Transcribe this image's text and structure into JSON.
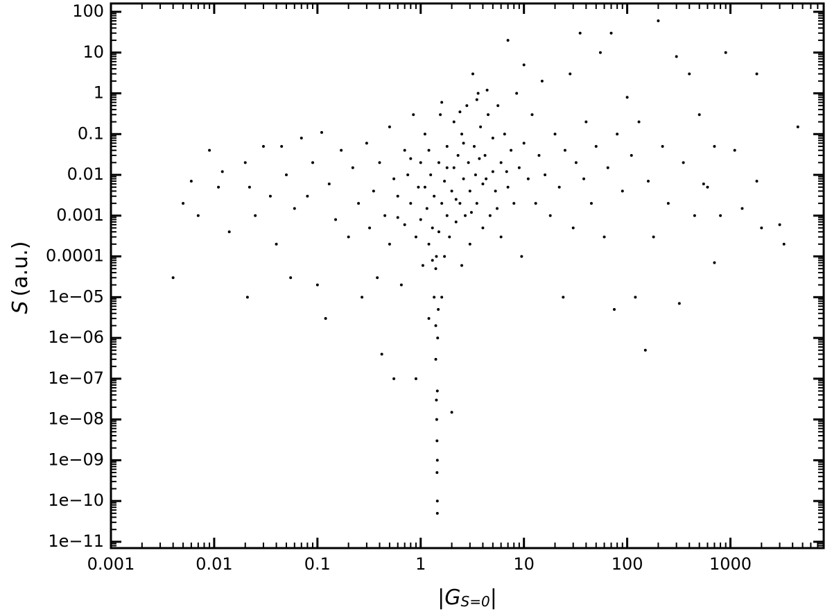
{
  "chart_data": {
    "type": "scatter",
    "xlabel_parts": [
      "|",
      "G",
      "S=0",
      "|"
    ],
    "ylabel_parts": [
      "S",
      "(a.u.)"
    ],
    "xscale": "log",
    "yscale": "log",
    "minor_ticks": true,
    "grid": false,
    "xlim": [
      0.001,
      8000
    ],
    "ylim": [
      7e-12,
      160
    ],
    "xticks": [
      0.001,
      0.01,
      0.1,
      1,
      10,
      100,
      1000
    ],
    "yticks": [
      100,
      10,
      1,
      0.1,
      0.01,
      0.001,
      0.0001,
      {
        "value": 1e-05,
        "label": "1e−05"
      },
      {
        "value": 1e-06,
        "label": "1e−06"
      },
      {
        "value": 1e-07,
        "label": "1e−07"
      },
      {
        "value": 1e-08,
        "label": "1e−08"
      },
      {
        "value": 1e-09,
        "label": "1e−09"
      },
      {
        "value": 1e-10,
        "label": "1e−10"
      },
      {
        "value": 1e-11,
        "label": "1e−11"
      }
    ],
    "series": [
      {
        "color": "#000000",
        "x": [
          0.004,
          0.005,
          0.006,
          0.007,
          0.009,
          0.011,
          0.012,
          0.014,
          0.02,
          0.021,
          0.022,
          0.025,
          0.03,
          0.035,
          0.04,
          0.045,
          0.05,
          0.055,
          0.06,
          0.07,
          0.08,
          0.09,
          0.1,
          0.11,
          0.12,
          0.13,
          0.15,
          0.17,
          0.2,
          0.22,
          0.25,
          0.27,
          0.3,
          0.32,
          0.35,
          0.38,
          0.4,
          0.42,
          0.45,
          0.5,
          0.5,
          0.55,
          0.55,
          0.6,
          0.65,
          0.7,
          0.7,
          0.75,
          0.8,
          0.85,
          0.9,
          0.9,
          0.95,
          1.0,
          1.0,
          1.05,
          1.1,
          1.1,
          1.15,
          1.2,
          1.2,
          1.25,
          1.3,
          1.3,
          1.35,
          1.35,
          1.4,
          1.4,
          1.4,
          1.42,
          1.42,
          1.43,
          1.44,
          1.44,
          1.45,
          1.45,
          1.45,
          1.45,
          1.46,
          1.48,
          1.5,
          1.5,
          1.55,
          1.6,
          1.6,
          1.7,
          1.7,
          1.8,
          1.8,
          1.9,
          2.0,
          2.0,
          2.1,
          2.1,
          2.2,
          2.3,
          2.4,
          2.5,
          2.5,
          2.6,
          2.7,
          2.8,
          2.9,
          3.0,
          3.0,
          3.2,
          3.3,
          3.4,
          3.5,
          3.6,
          3.8,
          4.0,
          4.0,
          4.2,
          4.4,
          4.5,
          4.7,
          5.0,
          5.0,
          5.3,
          5.6,
          6.0,
          6.0,
          6.5,
          7,
          7,
          7.5,
          8,
          8.5,
          9,
          9.5,
          10,
          10,
          11,
          12,
          13,
          14,
          15,
          16,
          18,
          20,
          22,
          24,
          25,
          28,
          30,
          32,
          35,
          38,
          40,
          45,
          50,
          55,
          60,
          65,
          70,
          75,
          80,
          90,
          100,
          110,
          120,
          130,
          150,
          160,
          180,
          200,
          220,
          250,
          300,
          320,
          350,
          400,
          450,
          500,
          550,
          600,
          700,
          800,
          900,
          1100,
          1300,
          1800,
          1800,
          3000,
          3300,
          4500,
          700,
          2000,
          1.2,
          1.8,
          2.2,
          2.6,
          3.1,
          3.7,
          4.3,
          5.5,
          6.8,
          0.8,
          0.6,
          1.6,
          2.4,
          3.5
        ],
        "values": [
          3e-05,
          0.002,
          0.007,
          0.001,
          0.04,
          0.005,
          0.012,
          0.0004,
          0.02,
          1e-05,
          0.005,
          0.001,
          0.05,
          0.003,
          0.0002,
          0.05,
          0.01,
          3e-05,
          0.0015,
          0.08,
          0.003,
          0.02,
          2e-05,
          0.11,
          3e-06,
          0.006,
          0.0008,
          0.04,
          0.0003,
          0.015,
          0.002,
          1e-05,
          0.06,
          0.0005,
          0.004,
          3e-05,
          0.02,
          4e-07,
          0.001,
          0.15,
          0.0002,
          1e-07,
          0.008,
          0.003,
          2e-05,
          0.04,
          0.0006,
          0.01,
          0.002,
          0.3,
          1e-07,
          0.0003,
          0.005,
          0.02,
          0.0008,
          6e-05,
          0.005,
          0.1,
          0.0015,
          0.0002,
          3e-06,
          0.01,
          0.0005,
          8e-05,
          1e-05,
          0.003,
          2e-06,
          3e-07,
          5e-05,
          0.0001,
          3e-08,
          1e-08,
          3e-09,
          5e-10,
          1e-10,
          5e-11,
          1e-09,
          5e-08,
          1e-06,
          5e-06,
          0.02,
          0.0004,
          0.3,
          0.002,
          1e-05,
          0.007,
          0.0001,
          0.05,
          0.001,
          0.0003,
          1.5e-08,
          0.004,
          0.2,
          0.015,
          0.0007,
          0.03,
          0.002,
          0.1,
          6e-05,
          0.008,
          0.001,
          0.5,
          0.02,
          0.004,
          0.0002,
          3,
          0.05,
          0.01,
          0.002,
          1,
          0.15,
          0.006,
          0.0005,
          0.03,
          1.2,
          0.3,
          0.001,
          0.08,
          0.012,
          0.004,
          0.5,
          0.02,
          0.0003,
          0.1,
          20,
          0.005,
          0.04,
          0.002,
          1,
          0.015,
          0.0001,
          5,
          0.06,
          0.008,
          0.3,
          0.002,
          0.03,
          2,
          0.01,
          0.001,
          0.1,
          0.005,
          1e-05,
          0.04,
          3,
          0.0005,
          0.02,
          30,
          0.008,
          0.2,
          0.002,
          0.05,
          10,
          0.0003,
          0.015,
          30,
          5e-06,
          0.1,
          0.004,
          0.8,
          0.03,
          1e-05,
          0.2,
          5e-07,
          0.007,
          0.0003,
          60,
          0.05,
          0.002,
          8,
          7e-06,
          0.02,
          3,
          0.001,
          0.3,
          0.006,
          0.005,
          7e-05,
          0.001,
          10,
          0.04,
          0.0015,
          3,
          0.007,
          0.0006,
          0.0002,
          0.15,
          0.05,
          0.0005,
          0.04,
          0.015,
          0.0025,
          0.06,
          0.0012,
          0.025,
          0.008,
          0.0015,
          0.012,
          0.025,
          0.0009,
          0.6,
          0.35,
          0.7
        ]
      }
    ]
  }
}
